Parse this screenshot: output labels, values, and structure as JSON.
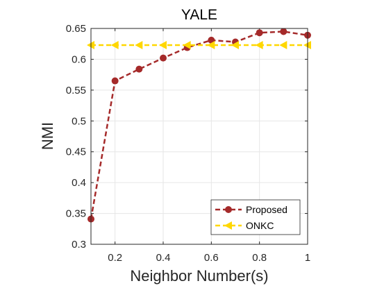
{
  "chart_data": {
    "type": "line",
    "title": "YALE",
    "xlabel": "Neighbor Number(s)",
    "ylabel": "NMI",
    "xlim": [
      0.1,
      1.0
    ],
    "ylim": [
      0.3,
      0.65
    ],
    "x_ticks": [
      0.2,
      0.4,
      0.6,
      0.8,
      1.0
    ],
    "x_tick_labels": [
      "0.2",
      "0.4",
      "0.6",
      "0.8",
      "1"
    ],
    "y_ticks": [
      0.3,
      0.35,
      0.4,
      0.45,
      0.5,
      0.55,
      0.6,
      0.65
    ],
    "y_tick_labels": [
      "0.3",
      "0.35",
      "0.4",
      "0.45",
      "0.5",
      "0.55",
      "0.6",
      "0.65"
    ],
    "grid": true,
    "legend_position": "bottom-right",
    "x": [
      0.1,
      0.2,
      0.3,
      0.4,
      0.5,
      0.6,
      0.7,
      0.8,
      0.9,
      1.0
    ],
    "series": [
      {
        "name": "Proposed",
        "color": "#a52a2a",
        "line_style": "dashed",
        "marker": "circle",
        "values": [
          0.341,
          0.565,
          0.584,
          0.602,
          0.619,
          0.631,
          0.628,
          0.643,
          0.645,
          0.639
        ]
      },
      {
        "name": "ONKC",
        "color": "#ffd700",
        "line_style": "dashed",
        "marker": "left-triangle",
        "values": [
          0.623,
          0.623,
          0.623,
          0.623,
          0.623,
          0.623,
          0.623,
          0.623,
          0.623,
          0.623
        ]
      }
    ]
  }
}
